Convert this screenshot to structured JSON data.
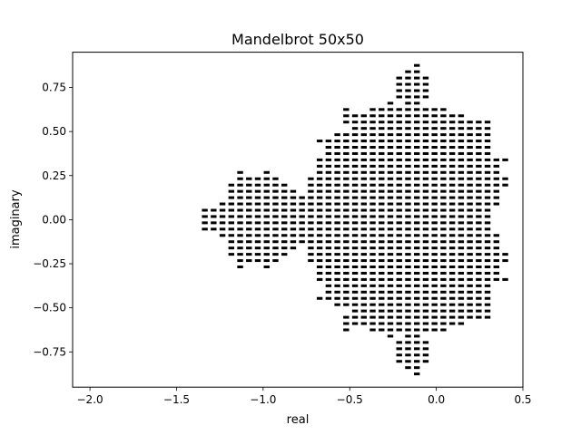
{
  "chart_data": {
    "type": "scatter",
    "title": "Mandelbrot 50x50",
    "xlabel": "real",
    "ylabel": "imaginary",
    "xlim": [
      -2.1,
      0.5
    ],
    "ylim": [
      -0.95,
      0.95
    ],
    "xticks": [
      -2.0,
      -1.5,
      -1.0,
      -0.5,
      0.0,
      0.5
    ],
    "xtick_labels": [
      "−2.0",
      "−1.5",
      "−1.0",
      "−0.5",
      "0.0",
      "0.5"
    ],
    "yticks": [
      -0.75,
      -0.5,
      -0.25,
      0.0,
      0.25,
      0.5,
      0.75
    ],
    "ytick_labels": [
      "−0.75",
      "−0.50",
      "−0.25",
      "0.00",
      "0.25",
      "0.50",
      "0.75"
    ],
    "grid": false,
    "marker_color": "#000000",
    "series": [
      {
        "grid_size": 50,
        "x_range": [
          -2.0,
          0.5
        ],
        "y_range": [
          -0.875,
          0.875
        ],
        "max_iterations": 50,
        "description_of_points": "grid points (real, imaginary) whose Mandelbrot iteration stays bounded"
      }
    ]
  }
}
